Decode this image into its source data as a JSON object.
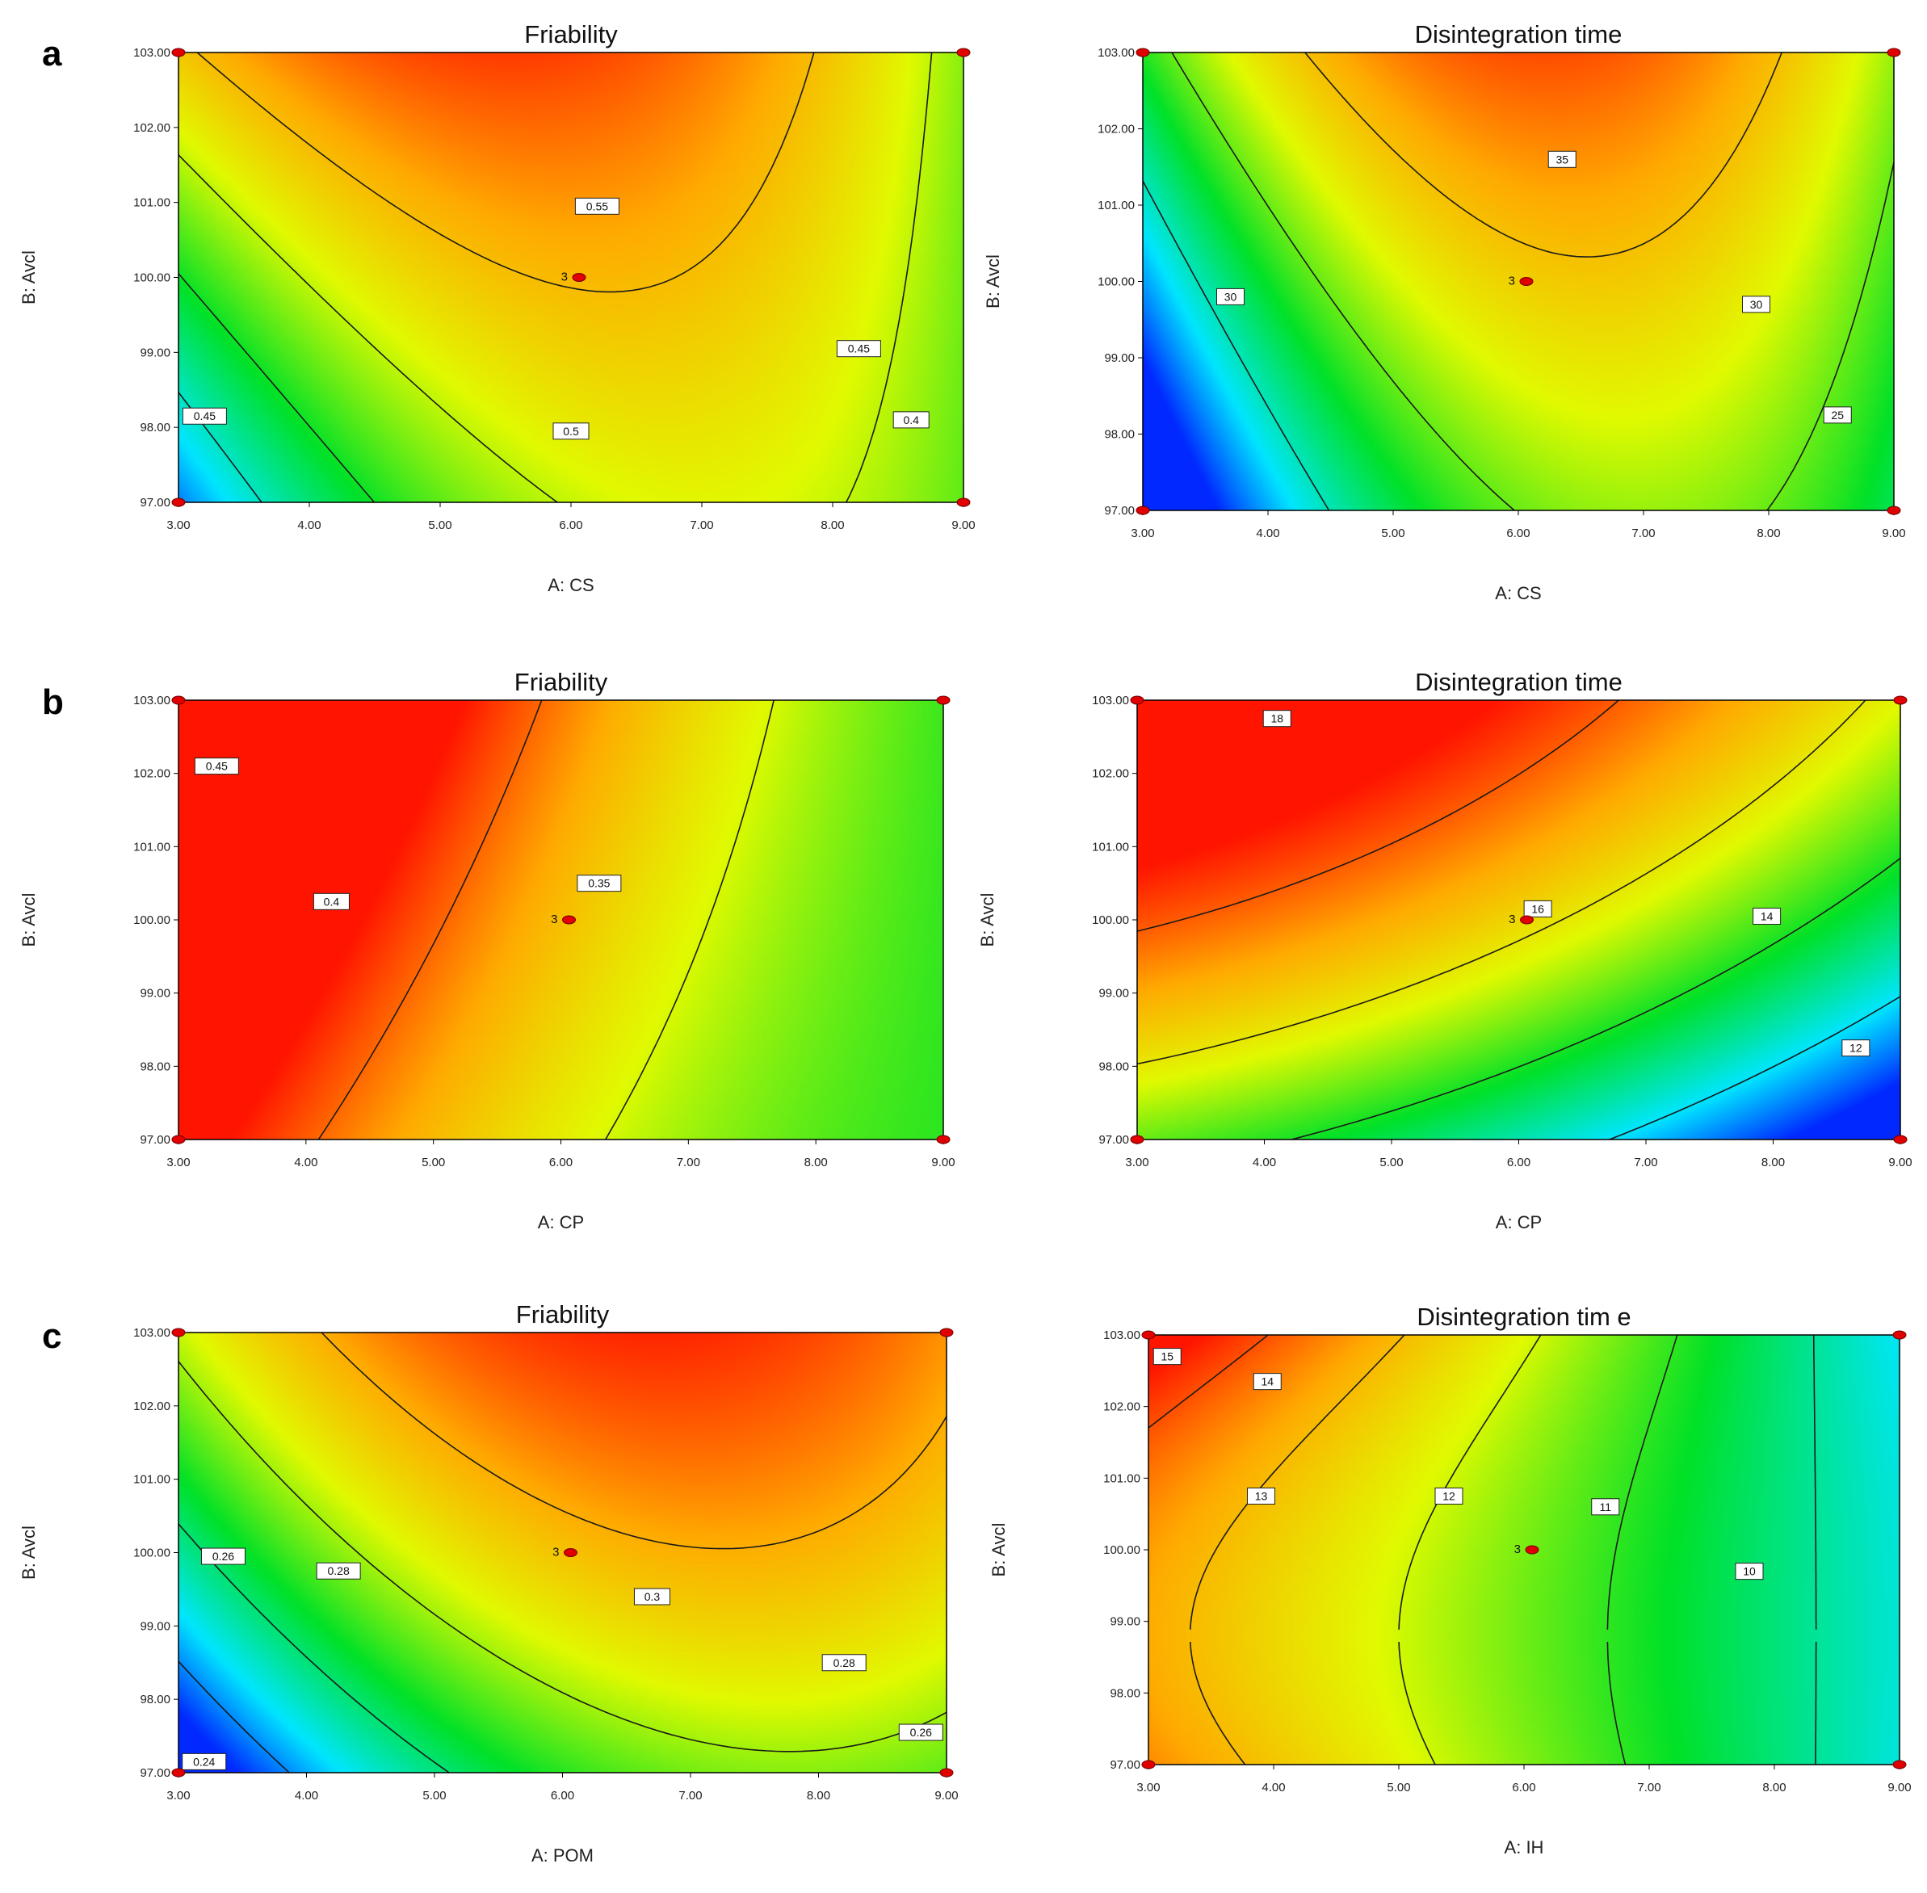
{
  "panel_letters": [
    "a",
    "b",
    "c"
  ],
  "chart_data": [
    {
      "type": "contour",
      "panel": "a",
      "title": "Friability",
      "xlabel": "A: CS",
      "ylabel": "B: Avcl",
      "xlim": [
        3,
        9
      ],
      "ylim": [
        97,
        103
      ],
      "xticks": [
        "3.00",
        "4.00",
        "5.00",
        "6.00",
        "7.00",
        "8.00",
        "9.00"
      ],
      "yticks": [
        "97.00",
        "98.00",
        "99.00",
        "100.00",
        "101.00",
        "102.00",
        "103.00"
      ],
      "color_scale": "red (high) to blue (low)",
      "contour_labels": [
        {
          "text": "0.55",
          "x": 6.2,
          "y": 100.95
        },
        {
          "text": "0.45",
          "x": 8.2,
          "y": 99.05
        },
        {
          "text": "0.45",
          "x": 3.2,
          "y": 98.15
        },
        {
          "text": "0.5",
          "x": 6.0,
          "y": 97.95
        },
        {
          "text": "0.4",
          "x": 8.6,
          "y": 98.1
        }
      ],
      "center_point": {
        "label": "3",
        "x": 6,
        "y": 100
      },
      "design_points": [
        [
          3,
          97
        ],
        [
          3,
          103
        ],
        [
          9,
          97
        ],
        [
          9,
          103
        ]
      ]
    },
    {
      "type": "contour",
      "panel": "a",
      "title": "Disintegration time",
      "xlabel": "A: CS",
      "ylabel": "B: Avcl",
      "xlim": [
        3,
        9
      ],
      "ylim": [
        97,
        103
      ],
      "xticks": [
        "3.00",
        "4.00",
        "5.00",
        "6.00",
        "7.00",
        "8.00",
        "9.00"
      ],
      "yticks": [
        "97.00",
        "98.00",
        "99.00",
        "100.00",
        "101.00",
        "102.00",
        "103.00"
      ],
      "color_scale": "red (high) to blue (low)",
      "contour_labels": [
        {
          "text": "35",
          "x": 6.35,
          "y": 101.6
        },
        {
          "text": "30",
          "x": 3.7,
          "y": 99.8
        },
        {
          "text": "30",
          "x": 7.9,
          "y": 99.7
        },
        {
          "text": "25",
          "x": 8.55,
          "y": 98.25
        }
      ],
      "center_point": {
        "label": "3",
        "x": 6,
        "y": 100
      },
      "design_points": [
        [
          3,
          97
        ],
        [
          3,
          103
        ],
        [
          9,
          97
        ],
        [
          9,
          103
        ]
      ]
    },
    {
      "type": "contour",
      "panel": "b",
      "title": "Friability",
      "xlabel": "A: CP",
      "ylabel": "B: Avcl",
      "xlim": [
        3,
        9
      ],
      "ylim": [
        97,
        103
      ],
      "xticks": [
        "3.00",
        "4.00",
        "5.00",
        "6.00",
        "7.00",
        "8.00",
        "9.00"
      ],
      "yticks": [
        "97.00",
        "98.00",
        "99.00",
        "100.00",
        "101.00",
        "102.00",
        "103.00"
      ],
      "color_scale": "red (high) to blue (low)",
      "contour_labels": [
        {
          "text": "0.45",
          "x": 3.3,
          "y": 102.1
        },
        {
          "text": "0.4",
          "x": 4.2,
          "y": 100.25
        },
        {
          "text": "0.35",
          "x": 6.3,
          "y": 100.5
        }
      ],
      "center_point": {
        "label": "3",
        "x": 6,
        "y": 100
      },
      "design_points": [
        [
          3,
          97
        ],
        [
          3,
          103
        ],
        [
          9,
          97
        ],
        [
          9,
          103
        ]
      ]
    },
    {
      "type": "contour",
      "panel": "b",
      "title": "Disintegration time",
      "xlabel": "A: CP",
      "ylabel": "B: Avcl",
      "xlim": [
        3,
        9
      ],
      "ylim": [
        97,
        103
      ],
      "xticks": [
        "3.00",
        "4.00",
        "5.00",
        "6.00",
        "7.00",
        "8.00",
        "9.00"
      ],
      "yticks": [
        "97.00",
        "98.00",
        "99.00",
        "100.00",
        "101.00",
        "102.00",
        "103.00"
      ],
      "color_scale": "red (high) to blue (low)",
      "contour_labels": [
        {
          "text": "18",
          "x": 4.1,
          "y": 102.75
        },
        {
          "text": "16",
          "x": 6.15,
          "y": 100.15
        },
        {
          "text": "14",
          "x": 7.95,
          "y": 100.05
        },
        {
          "text": "12",
          "x": 8.65,
          "y": 98.25
        }
      ],
      "center_point": {
        "label": "3",
        "x": 6,
        "y": 100
      },
      "design_points": [
        [
          3,
          97
        ],
        [
          3,
          103
        ],
        [
          9,
          97
        ],
        [
          9,
          103
        ]
      ]
    },
    {
      "type": "contour",
      "panel": "c",
      "title": "Friability",
      "xlabel": "A: POM",
      "ylabel": "B: Avcl",
      "xlim": [
        3,
        9
      ],
      "ylim": [
        97,
        103
      ],
      "xticks": [
        "3.00",
        "4.00",
        "5.00",
        "6.00",
        "7.00",
        "8.00",
        "9.00"
      ],
      "yticks": [
        "97.00",
        "98.00",
        "99.00",
        "100.00",
        "101.00",
        "102.00",
        "103.00"
      ],
      "color_scale": "red (high) to blue (low)",
      "contour_labels": [
        {
          "text": "0.26",
          "x": 3.35,
          "y": 99.95
        },
        {
          "text": "0.28",
          "x": 4.25,
          "y": 99.75
        },
        {
          "text": "0.3",
          "x": 6.7,
          "y": 99.4
        },
        {
          "text": "0.28",
          "x": 8.2,
          "y": 98.5
        },
        {
          "text": "0.26",
          "x": 8.8,
          "y": 97.55
        },
        {
          "text": "0.24",
          "x": 3.2,
          "y": 97.15
        }
      ],
      "center_point": {
        "label": "3",
        "x": 6,
        "y": 100
      },
      "design_points": [
        [
          3,
          97
        ],
        [
          3,
          103
        ],
        [
          9,
          97
        ],
        [
          9,
          103
        ]
      ]
    },
    {
      "type": "contour",
      "panel": "c",
      "title": "Disintegration tim e",
      "xlabel": "A: IH",
      "ylabel": "B: Avcl",
      "xlim": [
        3,
        9
      ],
      "ylim": [
        97,
        103
      ],
      "xticks": [
        "3.00",
        "4.00",
        "5.00",
        "6.00",
        "7.00",
        "8.00",
        "9.00"
      ],
      "yticks": [
        "97.00",
        "98.00",
        "99.00",
        "100.00",
        "101.00",
        "102.00",
        "103.00"
      ],
      "color_scale": "red (high) to blue (low)",
      "contour_labels": [
        {
          "text": "15",
          "x": 3.15,
          "y": 102.7
        },
        {
          "text": "14",
          "x": 3.95,
          "y": 102.35
        },
        {
          "text": "13",
          "x": 3.9,
          "y": 100.75
        },
        {
          "text": "12",
          "x": 5.4,
          "y": 100.75
        },
        {
          "text": "11",
          "x": 6.65,
          "y": 100.6
        },
        {
          "text": "10",
          "x": 7.8,
          "y": 99.7
        }
      ],
      "center_point": {
        "label": "3",
        "x": 6,
        "y": 100
      },
      "design_points": [
        [
          3,
          97
        ],
        [
          3,
          103
        ],
        [
          9,
          97
        ],
        [
          9,
          103
        ]
      ]
    }
  ]
}
